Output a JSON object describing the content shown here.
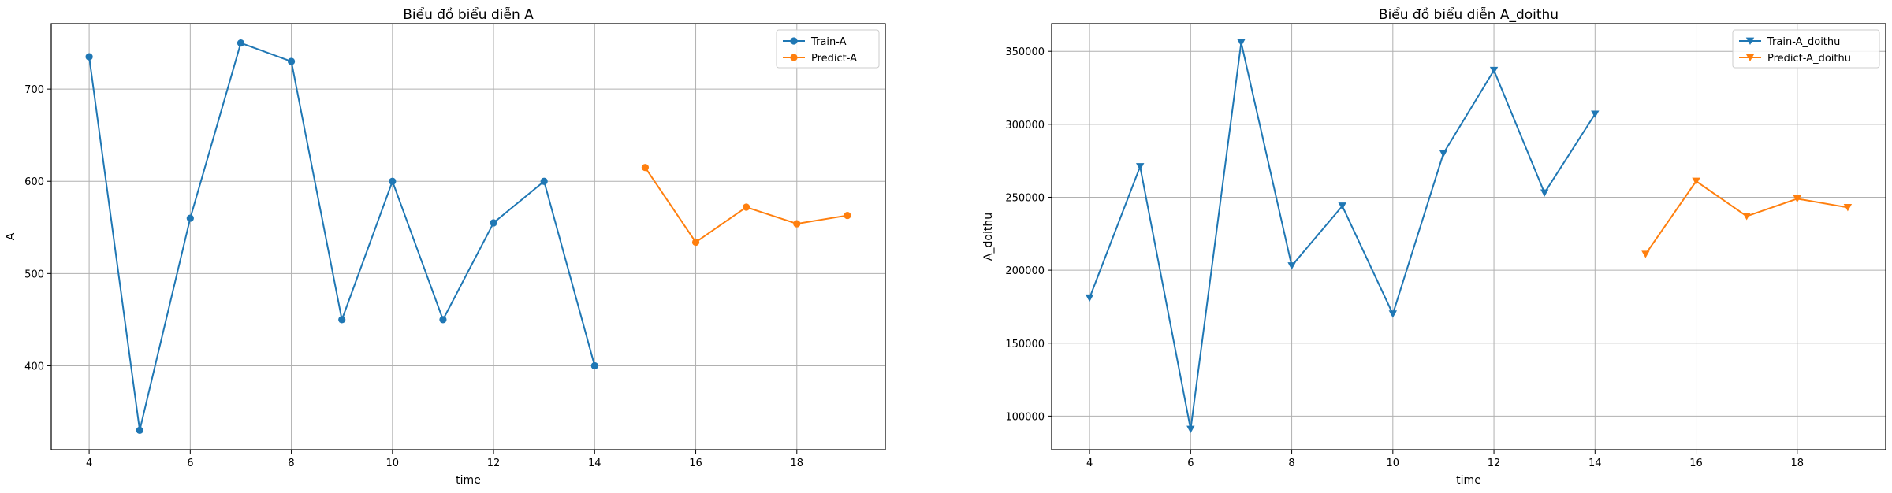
{
  "chart_data": [
    {
      "type": "line",
      "title": "Biểu đồ biểu diễn A",
      "xlabel": "time",
      "ylabel": "A",
      "xlim": [
        3.25,
        19.75
      ],
      "ylim": [
        309,
        771
      ],
      "xticks": [
        4,
        6,
        8,
        10,
        12,
        14,
        16,
        18
      ],
      "yticks": [
        400,
        500,
        600,
        700
      ],
      "grid": true,
      "legend_position": "top-right",
      "series": [
        {
          "name": "Train-A",
          "color": "#1f77b4",
          "marker": "circle",
          "x": [
            4,
            5,
            6,
            7,
            8,
            9,
            10,
            11,
            12,
            13,
            14
          ],
          "values": [
            735,
            330,
            560,
            750,
            730,
            450,
            600,
            450,
            555,
            600,
            400
          ]
        },
        {
          "name": "Predict-A",
          "color": "#ff7f0e",
          "marker": "circle",
          "x": [
            15,
            16,
            17,
            18,
            19
          ],
          "values": [
            615,
            534,
            572,
            554,
            563
          ]
        }
      ]
    },
    {
      "type": "line",
      "title": "Biểu đồ biểu diễn A_doithu",
      "xlabel": "time",
      "ylabel": "A_doithu",
      "xlim": [
        3.25,
        19.75
      ],
      "ylim": [
        77000,
        369000
      ],
      "xticks": [
        4,
        6,
        8,
        10,
        12,
        14,
        16,
        18
      ],
      "yticks": [
        100000,
        150000,
        200000,
        250000,
        300000,
        350000
      ],
      "grid": true,
      "legend_position": "top-right",
      "series": [
        {
          "name": "Train-A_doithu",
          "color": "#1f77b4",
          "marker": "triangle-down",
          "x": [
            4,
            5,
            6,
            7,
            8,
            9,
            10,
            11,
            12,
            13,
            14
          ],
          "values": [
            181000,
            271000,
            91000,
            356000,
            203000,
            244000,
            170000,
            280000,
            337000,
            253000,
            307000
          ]
        },
        {
          "name": "Predict-A_doithu",
          "color": "#ff7f0e",
          "marker": "triangle-down",
          "x": [
            15,
            16,
            17,
            18,
            19
          ],
          "values": [
            211000,
            261000,
            237000,
            249000,
            243000
          ]
        }
      ]
    }
  ]
}
